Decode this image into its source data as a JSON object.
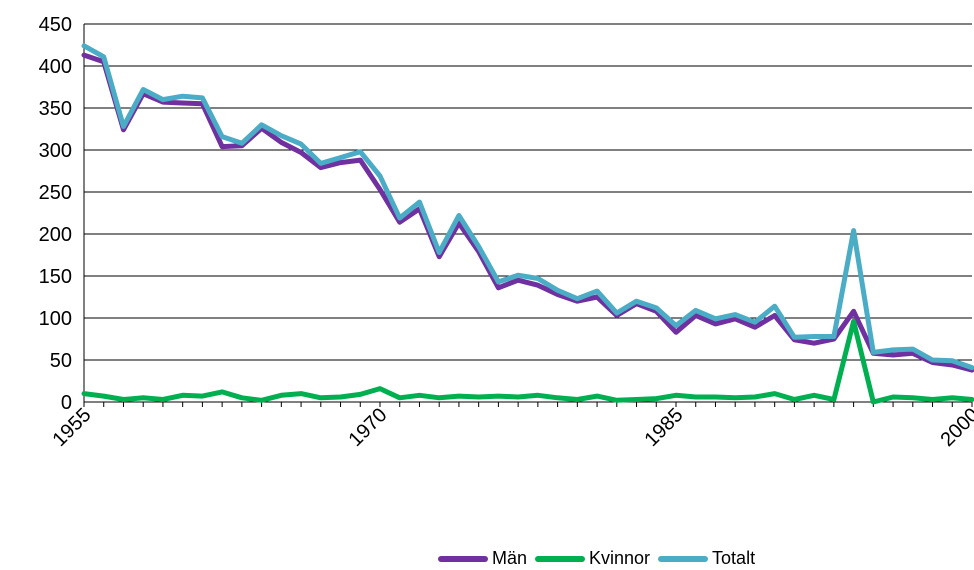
{
  "chart_data": {
    "type": "line",
    "title": "",
    "xlabel": "",
    "ylabel": "",
    "ylim": [
      0,
      450
    ],
    "yticks": [
      0,
      50,
      100,
      150,
      200,
      250,
      300,
      350,
      400,
      450
    ],
    "xlim": [
      1955,
      2000
    ],
    "xtick_labels": [
      "1955",
      "1970",
      "1985",
      "2000"
    ],
    "grid": "horizontal",
    "legend_position": "bottom",
    "x": [
      1955,
      1956,
      1957,
      1958,
      1959,
      1960,
      1961,
      1962,
      1963,
      1964,
      1965,
      1966,
      1967,
      1968,
      1969,
      1970,
      1971,
      1972,
      1973,
      1974,
      1975,
      1976,
      1977,
      1978,
      1979,
      1980,
      1981,
      1982,
      1983,
      1984,
      1985,
      1986,
      1987,
      1988,
      1989,
      1990,
      1991,
      1992,
      1993,
      1994,
      1995,
      1996,
      1997,
      1998,
      1999,
      2000
    ],
    "series": [
      {
        "name": "Män",
        "color": "#7030A0",
        "values": [
          413,
          405,
          324,
          367,
          357,
          356,
          355,
          304,
          305,
          326,
          309,
          297,
          279,
          285,
          288,
          253,
          214,
          230,
          173,
          213,
          179,
          136,
          145,
          139,
          128,
          120,
          125,
          103,
          117,
          108,
          83,
          103,
          93,
          99,
          89,
          103,
          74,
          70,
          75,
          108,
          58,
          56,
          58,
          47,
          44,
          38
        ]
      },
      {
        "name": "Kvinnor",
        "color": "#00B050",
        "values": [
          10,
          7,
          3,
          5,
          3,
          8,
          7,
          12,
          5,
          2,
          8,
          10,
          5,
          6,
          9,
          16,
          5,
          8,
          5,
          7,
          6,
          7,
          6,
          8,
          5,
          3,
          7,
          2,
          3,
          4,
          8,
          6,
          6,
          5,
          6,
          10,
          3,
          8,
          3,
          96,
          0,
          6,
          5,
          3,
          5,
          3
        ]
      },
      {
        "name": "Totalt",
        "color": "#4BACC6",
        "values": [
          424,
          411,
          328,
          372,
          360,
          364,
          362,
          316,
          308,
          330,
          317,
          307,
          284,
          291,
          298,
          269,
          219,
          238,
          178,
          222,
          185,
          143,
          151,
          147,
          133,
          123,
          132,
          106,
          120,
          112,
          91,
          109,
          99,
          104,
          95,
          114,
          77,
          78,
          78,
          204,
          59,
          62,
          63,
          50,
          49,
          41
        ]
      }
    ]
  }
}
